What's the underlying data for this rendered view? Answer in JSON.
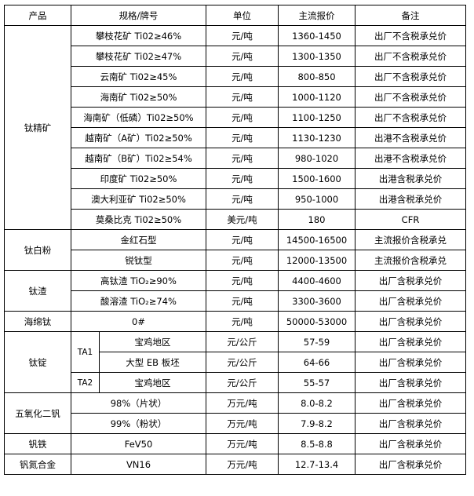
{
  "headers": [
    "产品",
    "规格/牌号",
    "单位",
    "主流报价",
    "备注"
  ],
  "groups": {
    "titanium_concentrate": {
      "product": "钛精矿",
      "rows": [
        {
          "spec": "攀枝花矿 Ti02≥46%",
          "unit": "元/吨",
          "price": "1360-1450",
          "note": "出厂不含税承兑价"
        },
        {
          "spec": "攀枝花矿 Ti02≥47%",
          "unit": "元/吨",
          "price": "1300-1350",
          "note": "出厂不含税承兑价"
        },
        {
          "spec": "云南矿 Ti02≥45%",
          "unit": "元/吨",
          "price": "800-850",
          "note": "出厂不含税承兑价"
        },
        {
          "spec": "海南矿 Ti02≥50%",
          "unit": "元/吨",
          "price": "1000-1120",
          "note": "出厂不含税承兑价"
        },
        {
          "spec": "海南矿（低磷）Ti02≥50%",
          "unit": "元/吨",
          "price": "1100-1250",
          "note": "出厂不含税承兑价"
        },
        {
          "spec": "越南矿（A矿）Ti02≥50%",
          "unit": "元/吨",
          "price": "1130-1230",
          "note": "出港不含税承兑价"
        },
        {
          "spec": "越南矿（B矿）Ti02≥54%",
          "unit": "元/吨",
          "price": "980-1020",
          "note": "出港不含税承兑价"
        },
        {
          "spec": "印度矿 Ti02≥50%",
          "unit": "元/吨",
          "price": "1500-1600",
          "note": "出港含税承兑价"
        },
        {
          "spec": "澳大利亚矿 Ti02≥50%",
          "unit": "元/吨",
          "price": "950-1000",
          "note": "出港含税承兑价"
        },
        {
          "spec": "莫桑比克 Ti02≥50%",
          "unit": "美元/吨",
          "price": "180",
          "note": "CFR"
        }
      ]
    },
    "titanium_dioxide": {
      "product": "钛白粉",
      "rows": [
        {
          "spec": "金红石型",
          "unit": "元/吨",
          "price": "14500-16500",
          "note": "主流报价含税承兑"
        },
        {
          "spec": "锐钛型",
          "unit": "元/吨",
          "price": "12000-13500",
          "note": "主流报价含税承兑"
        }
      ]
    },
    "titanium_slag": {
      "product": "钛渣",
      "rows": [
        {
          "spec": "高钛渣 TiO₂≥90%",
          "unit": "元/吨",
          "price": "4400-4600",
          "note": "出厂含税承兑价"
        },
        {
          "spec": "酸溶渣 TiO₂≥74%",
          "unit": "元/吨",
          "price": "3300-3600",
          "note": "出厂含税承兑价"
        }
      ]
    },
    "titanium_sponge": {
      "product": "海绵钛",
      "rows": [
        {
          "spec": "0#",
          "unit": "元/吨",
          "price": "50000-53000",
          "note": "出厂含税承兑价"
        }
      ]
    },
    "titanium_ingot": {
      "product": "钛锭",
      "grade1": "TA1",
      "grade2": "TA2",
      "rows": [
        {
          "spec": "宝鸡地区",
          "unit": "元/公斤",
          "price": "57-59",
          "note": "出厂含税承兑价"
        },
        {
          "spec": "大型 EB 板坯",
          "unit": "元/公斤",
          "price": "64-66",
          "note": "出厂含税承兑价"
        },
        {
          "spec": "宝鸡地区",
          "unit": "元/公斤",
          "price": "55-57",
          "note": "出厂含税承兑价"
        }
      ]
    },
    "vanadium_pentoxide": {
      "product": "五氧化二钒",
      "rows": [
        {
          "spec": "98%（片状）",
          "unit": "万元/吨",
          "price": "8.0-8.2",
          "note": "出厂含税承兑价"
        },
        {
          "spec": "99%（粉状）",
          "unit": "万元/吨",
          "price": "7.9-8.2",
          "note": "出厂含税承兑价"
        }
      ]
    },
    "ferrovanadium": {
      "product": "钒铁",
      "rows": [
        {
          "spec": "FeV50",
          "unit": "万元/吨",
          "price": "8.5-8.8",
          "note": "出厂含税承兑价"
        }
      ]
    },
    "vanadium_nitrogen": {
      "product": "钒氮合金",
      "rows": [
        {
          "spec": "VN16",
          "unit": "万元/吨",
          "price": "12.7-13.4",
          "note": "出厂含税承兑价"
        }
      ]
    }
  }
}
